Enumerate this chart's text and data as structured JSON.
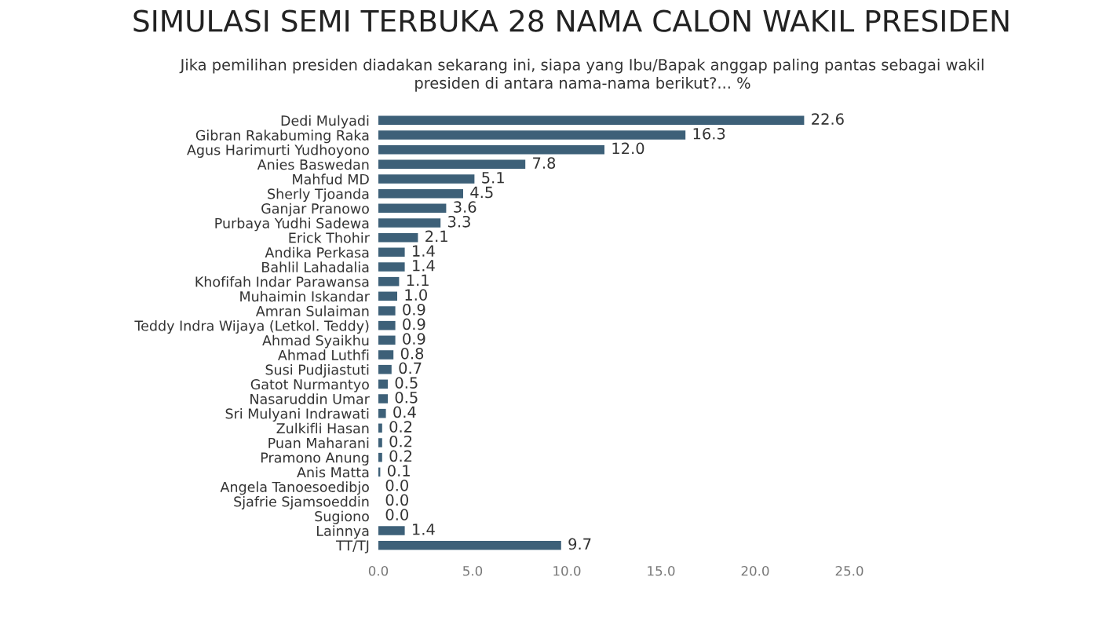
{
  "chart_data": {
    "type": "bar",
    "orientation": "horizontal",
    "title": "SIMULASI SEMI TERBUKA 28 NAMA CALON WAKIL PRESIDEN",
    "subtitle": "Jika pemilihan presiden diadakan sekarang ini, siapa yang Ibu/Bapak anggap paling pantas sebagai wakil\npresiden di antara nama-nama berikut?... %",
    "categories": [
      "Dedi Mulyadi",
      "Gibran Rakabuming Raka",
      "Agus Harimurti Yudhoyono",
      "Anies Baswedan",
      "Mahfud MD",
      "Sherly Tjoanda",
      "Ganjar Pranowo",
      "Purbaya Yudhi Sadewa",
      "Erick Thohir",
      "Andika Perkasa",
      "Bahlil Lahadalia",
      "Khofifah Indar Parawansa",
      "Muhaimin Iskandar",
      "Amran Sulaiman",
      "Teddy Indra Wijaya (Letkol. Teddy)",
      "Ahmad Syaikhu",
      "Ahmad Luthfi",
      "Susi Pudjiastuti",
      "Gatot Nurmantyo",
      "Nasaruddin Umar",
      "Sri Mulyani Indrawati",
      "Zulkifli Hasan",
      "Puan Maharani",
      "Pramono Anung",
      "Anis Matta",
      "Angela Tanoesoedibjo",
      "Sjafrie Sjamsoeddin",
      "Sugiono",
      "Lainnya",
      "TT/TJ"
    ],
    "values": [
      22.6,
      16.3,
      12.0,
      7.8,
      5.1,
      4.5,
      3.6,
      3.3,
      2.1,
      1.4,
      1.4,
      1.1,
      1.0,
      0.9,
      0.9,
      0.9,
      0.8,
      0.7,
      0.5,
      0.5,
      0.4,
      0.2,
      0.2,
      0.2,
      0.1,
      0.0,
      0.0,
      0.0,
      1.4,
      9.7
    ],
    "value_labels": [
      "22.6",
      "16.3",
      "12.0",
      "7.8",
      "5.1",
      "4.5",
      "3.6",
      "3.3",
      "2.1",
      "1.4",
      "1.4",
      "1.1",
      "1.0",
      "0.9",
      "0.9",
      "0.9",
      "0.8",
      "0.7",
      "0.5",
      "0.5",
      "0.4",
      "0.2",
      "0.2",
      "0.2",
      "0.1",
      "0.0",
      "0.0",
      "0.0",
      "1.4",
      "9.7"
    ],
    "color": "#3d6078",
    "xlim": [
      0,
      25
    ],
    "xticks": [
      {
        "value": 0,
        "label": "0.0"
      },
      {
        "value": 5,
        "label": "5.0"
      },
      {
        "value": 10,
        "label": "10.0"
      },
      {
        "value": 15,
        "label": "15.0"
      },
      {
        "value": 20,
        "label": "20.0"
      },
      {
        "value": 25,
        "label": "25.0"
      }
    ],
    "grid": false,
    "legend": false
  }
}
